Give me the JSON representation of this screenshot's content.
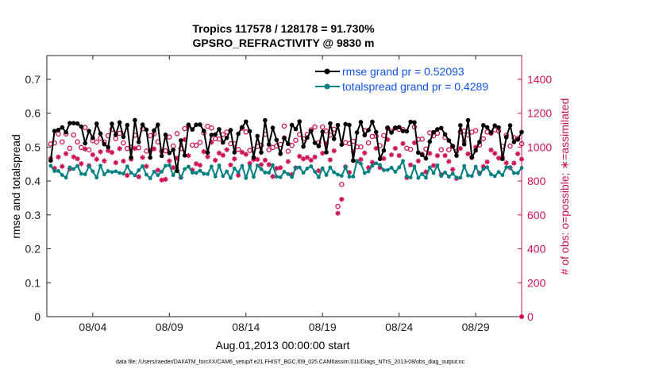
{
  "chart_data": {
    "type": "line",
    "title": [
      "Tropics 117578 / 128178 = 91.730%",
      "GPSRO_REFRACTIVITY @ 9830 m"
    ],
    "xlabel": "Aug.01,2013 00:00:00 start",
    "ylabel_left": "rmse and totalspread",
    "ylabel_right": "# of obs: o=possible; ∗=assimilated",
    "x_ticks": [
      "08/04",
      "08/09",
      "08/14",
      "08/19",
      "08/24",
      "08/29"
    ],
    "x_tick_days": [
      3,
      8,
      13,
      18,
      23,
      28
    ],
    "xlim_days": [
      0,
      31
    ],
    "y_left_ticks": [
      "0",
      "0.1",
      "0.2",
      "0.3",
      "0.4",
      "0.5",
      "0.6",
      "0.7"
    ],
    "ylim_left": [
      0,
      0.77
    ],
    "y_right_ticks": [
      "0",
      "200",
      "400",
      "600",
      "800",
      "1000",
      "1200",
      "1400"
    ],
    "ylim_right": [
      0,
      1540
    ],
    "legend": [
      {
        "label": "rmse grand pr = 0.52093",
        "color": "#000000"
      },
      {
        "label": "totalspread grand pr = 0.4289",
        "color": "#008080"
      }
    ],
    "series": [
      {
        "name": "rmse",
        "color": "#000000",
        "marker": "hexagram"
      },
      {
        "name": "totalspread",
        "color": "#008080",
        "marker": "circle"
      },
      {
        "name": "possible",
        "color": "#cc1155",
        "marker": "o"
      },
      {
        "name": "assimilated",
        "color": "#cc1155",
        "marker": "asterisk"
      }
    ],
    "summary": {
      "rmse_mean": 0.52093,
      "totalspread_mean": 0.4289,
      "n_possible": 128178,
      "n_assimilated": 117578,
      "percent_assimilated": 91.73
    }
  },
  "footnote": "data file: /Users/raeder/DAI/ATM_forcXX/CAM6_setup/f.e21.FHIST_BGC.f09_025.CAM6assim.011/Diags_NTrS_2013-08/obs_diag_output.nc"
}
